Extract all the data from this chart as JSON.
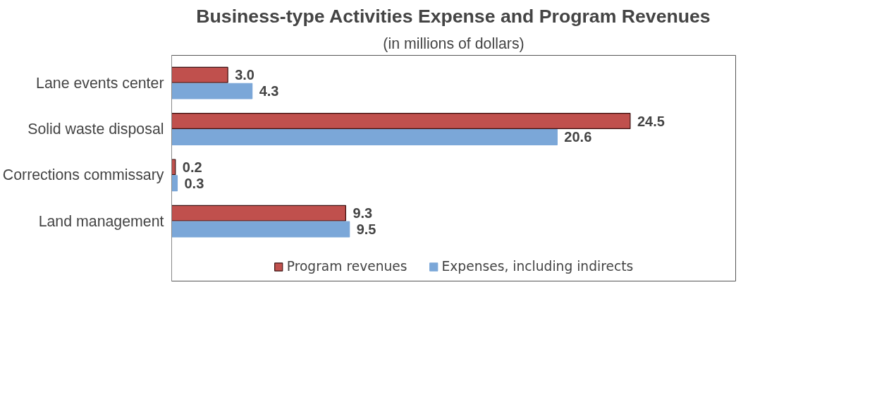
{
  "chart_data": {
    "type": "bar",
    "orientation": "horizontal",
    "title": "Business-type Activities Expense and Program Revenues",
    "subtitle": "(in millions of dollars)",
    "categories": [
      "Lane events center",
      "Solid waste disposal",
      "Corrections commissary",
      "Land management"
    ],
    "series": [
      {
        "name": "Program revenues",
        "color": "#c0504d",
        "values": [
          3.0,
          24.5,
          0.2,
          9.3
        ],
        "value_labels": [
          "3.0",
          "24.5",
          "0.2",
          "9.3"
        ]
      },
      {
        "name": "Expenses, including indirects",
        "color": "#7ba7d8",
        "values": [
          4.3,
          20.6,
          0.3,
          9.5
        ],
        "value_labels": [
          "4.3",
          "20.6",
          "0.3",
          "9.5"
        ]
      }
    ],
    "data_labels": true,
    "grid": false,
    "legend": "bottom"
  }
}
